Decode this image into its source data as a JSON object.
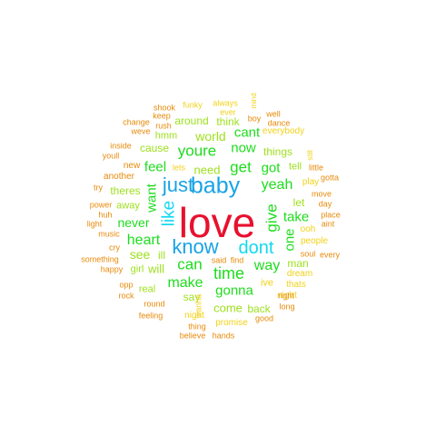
{
  "colors": {
    "red": "#e8102e",
    "blue": "#17a3e6",
    "cyan": "#12d8f0",
    "green": "#1ddc1d",
    "lime": "#9ee01e",
    "yellow": "#f2d21a",
    "orange": "#e88a0a"
  },
  "words": [
    {
      "t": "love",
      "c": "red"
    },
    {
      "t": "baby",
      "c": "blue"
    },
    {
      "t": "just",
      "c": "blue"
    },
    {
      "t": "know",
      "c": "blue"
    },
    {
      "t": "dont",
      "c": "cyan"
    },
    {
      "t": "like",
      "c": "cyan"
    },
    {
      "t": "youre",
      "c": "green"
    },
    {
      "t": "get",
      "c": "green"
    },
    {
      "t": "now",
      "c": "green"
    },
    {
      "t": "cant",
      "c": "green"
    },
    {
      "t": "yeah",
      "c": "green"
    },
    {
      "t": "got",
      "c": "green"
    },
    {
      "t": "time",
      "c": "green"
    },
    {
      "t": "can",
      "c": "green"
    },
    {
      "t": "way",
      "c": "green"
    },
    {
      "t": "heart",
      "c": "green"
    },
    {
      "t": "make",
      "c": "green"
    },
    {
      "t": "gonna",
      "c": "green"
    },
    {
      "t": "give",
      "c": "green"
    },
    {
      "t": "take",
      "c": "green"
    },
    {
      "t": "want",
      "c": "green"
    },
    {
      "t": "feel",
      "c": "green"
    },
    {
      "t": "never",
      "c": "green"
    },
    {
      "t": "one",
      "c": "green"
    },
    {
      "t": "world",
      "c": "lime"
    },
    {
      "t": "need",
      "c": "lime"
    },
    {
      "t": "see",
      "c": "lime"
    },
    {
      "t": "will",
      "c": "lime"
    },
    {
      "t": "cause",
      "c": "lime"
    },
    {
      "t": "theres",
      "c": "lime"
    },
    {
      "t": "away",
      "c": "lime"
    },
    {
      "t": "let",
      "c": "lime"
    },
    {
      "t": "say",
      "c": "lime"
    },
    {
      "t": "come",
      "c": "lime"
    },
    {
      "t": "back",
      "c": "lime"
    },
    {
      "t": "ill",
      "c": "lime"
    },
    {
      "t": "girl",
      "c": "lime"
    },
    {
      "t": "things",
      "c": "lime"
    },
    {
      "t": "think",
      "c": "lime"
    },
    {
      "t": "around",
      "c": "lime"
    },
    {
      "t": "hmm",
      "c": "lime"
    },
    {
      "t": "tell",
      "c": "lime"
    },
    {
      "t": "man",
      "c": "lime"
    },
    {
      "t": "real",
      "c": "lime"
    },
    {
      "t": "lets",
      "c": "yellow"
    },
    {
      "t": "ive",
      "c": "yellow"
    },
    {
      "t": "night",
      "c": "yellow"
    },
    {
      "t": "night",
      "c": "yellow"
    },
    {
      "t": "people",
      "c": "yellow"
    },
    {
      "t": "ooh",
      "c": "yellow"
    },
    {
      "t": "dream",
      "c": "yellow"
    },
    {
      "t": "thats",
      "c": "yellow"
    },
    {
      "t": "promise",
      "c": "yellow"
    },
    {
      "t": "wanna",
      "c": "yellow"
    },
    {
      "t": "everybody",
      "c": "yellow"
    },
    {
      "t": "play",
      "c": "yellow"
    },
    {
      "t": "always",
      "c": "yellow"
    },
    {
      "t": "funky",
      "c": "yellow"
    },
    {
      "t": "ever",
      "c": "yellow"
    },
    {
      "t": "mind",
      "c": "yellow"
    },
    {
      "t": "still",
      "c": "yellow"
    },
    {
      "t": "shook",
      "c": "orange"
    },
    {
      "t": "keep",
      "c": "orange"
    },
    {
      "t": "change",
      "c": "orange"
    },
    {
      "t": "rush",
      "c": "orange"
    },
    {
      "t": "weve",
      "c": "orange"
    },
    {
      "t": "boy",
      "c": "orange"
    },
    {
      "t": "well",
      "c": "orange"
    },
    {
      "t": "dance",
      "c": "orange"
    },
    {
      "t": "inside",
      "c": "orange"
    },
    {
      "t": "youll",
      "c": "orange"
    },
    {
      "t": "new",
      "c": "orange"
    },
    {
      "t": "another",
      "c": "orange"
    },
    {
      "t": "try",
      "c": "orange"
    },
    {
      "t": "power",
      "c": "orange"
    },
    {
      "t": "huh",
      "c": "orange"
    },
    {
      "t": "light",
      "c": "orange"
    },
    {
      "t": "music",
      "c": "orange"
    },
    {
      "t": "cry",
      "c": "orange"
    },
    {
      "t": "something",
      "c": "orange"
    },
    {
      "t": "happy",
      "c": "orange"
    },
    {
      "t": "opp",
      "c": "orange"
    },
    {
      "t": "rock",
      "c": "orange"
    },
    {
      "t": "round",
      "c": "orange"
    },
    {
      "t": "feeling",
      "c": "orange"
    },
    {
      "t": "thing",
      "c": "orange"
    },
    {
      "t": "believe",
      "c": "orange"
    },
    {
      "t": "hands",
      "c": "orange"
    },
    {
      "t": "said",
      "c": "orange"
    },
    {
      "t": "find",
      "c": "orange"
    },
    {
      "t": "good",
      "c": "orange"
    },
    {
      "t": "long",
      "c": "orange"
    },
    {
      "t": "right",
      "c": "orange"
    },
    {
      "t": "soul",
      "c": "orange"
    },
    {
      "t": "every",
      "c": "orange"
    },
    {
      "t": "aint",
      "c": "orange"
    },
    {
      "t": "place",
      "c": "orange"
    },
    {
      "t": "day",
      "c": "orange"
    },
    {
      "t": "move",
      "c": "orange"
    },
    {
      "t": "gotta",
      "c": "orange"
    },
    {
      "t": "little",
      "c": "orange"
    }
  ]
}
